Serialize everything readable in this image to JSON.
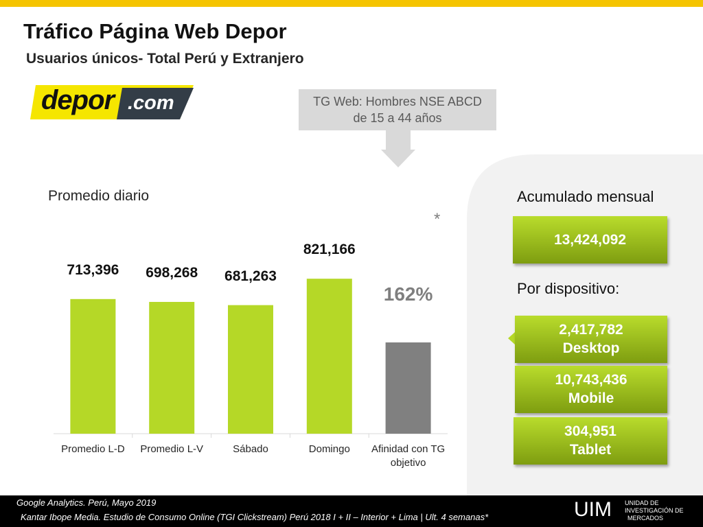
{
  "header": {
    "title": "Tráfico Página Web Depor",
    "subtitle": "Usuarios únicos- Total Perú y Extranjero"
  },
  "logo": {
    "name": "depor",
    "suffix": ".com"
  },
  "callout": {
    "lines": [
      "TG Web: Hombres NSE ABCD",
      "de 15 a 44 años"
    ]
  },
  "chart_data": {
    "type": "bar",
    "title": "Promedio diario",
    "annotation": "*",
    "categories": [
      "Promedio L-D",
      "Promedio L-V",
      "Sábado",
      "Domingo",
      "Afinidad con TG objetivo"
    ],
    "series": [
      {
        "color": "#b5d827",
        "values": [
          713396,
          698268,
          681263,
          821166,
          null
        ],
        "value_labels": [
          "713,396",
          "698,268",
          "681,263",
          "821,166",
          null
        ]
      },
      {
        "color": "#808080",
        "axis": "y2",
        "values": [
          null,
          null,
          null,
          null,
          162
        ],
        "value_labels": [
          null,
          null,
          null,
          null,
          "162%"
        ]
      }
    ],
    "ylim": [
      0,
      1000000
    ],
    "y2lim": [
      0,
      335
    ]
  },
  "summary": {
    "monthly_label": "Acumulado mensual",
    "monthly_value": "13,424,092",
    "device_label": "Por dispositivo:",
    "devices": [
      {
        "value": "2,417,782",
        "name": "Desktop"
      },
      {
        "value": "10,743,436",
        "name": "Mobile"
      },
      {
        "value": "304,951",
        "name": "Tablet"
      }
    ]
  },
  "footer": {
    "sources": [
      "Google Analytics. Perú, Mayo 2019",
      "Kantar Ibope Media. Estudio de Consumo Online (TGI Clickstream) Perú 2018 I + II – Interior + Lima | Ult. 4 semanas*"
    ],
    "brand": "UIM",
    "brand_lines": [
      "UNIDAD DE",
      "INVESTIGACIÓN DE",
      "MERCADOS"
    ]
  }
}
